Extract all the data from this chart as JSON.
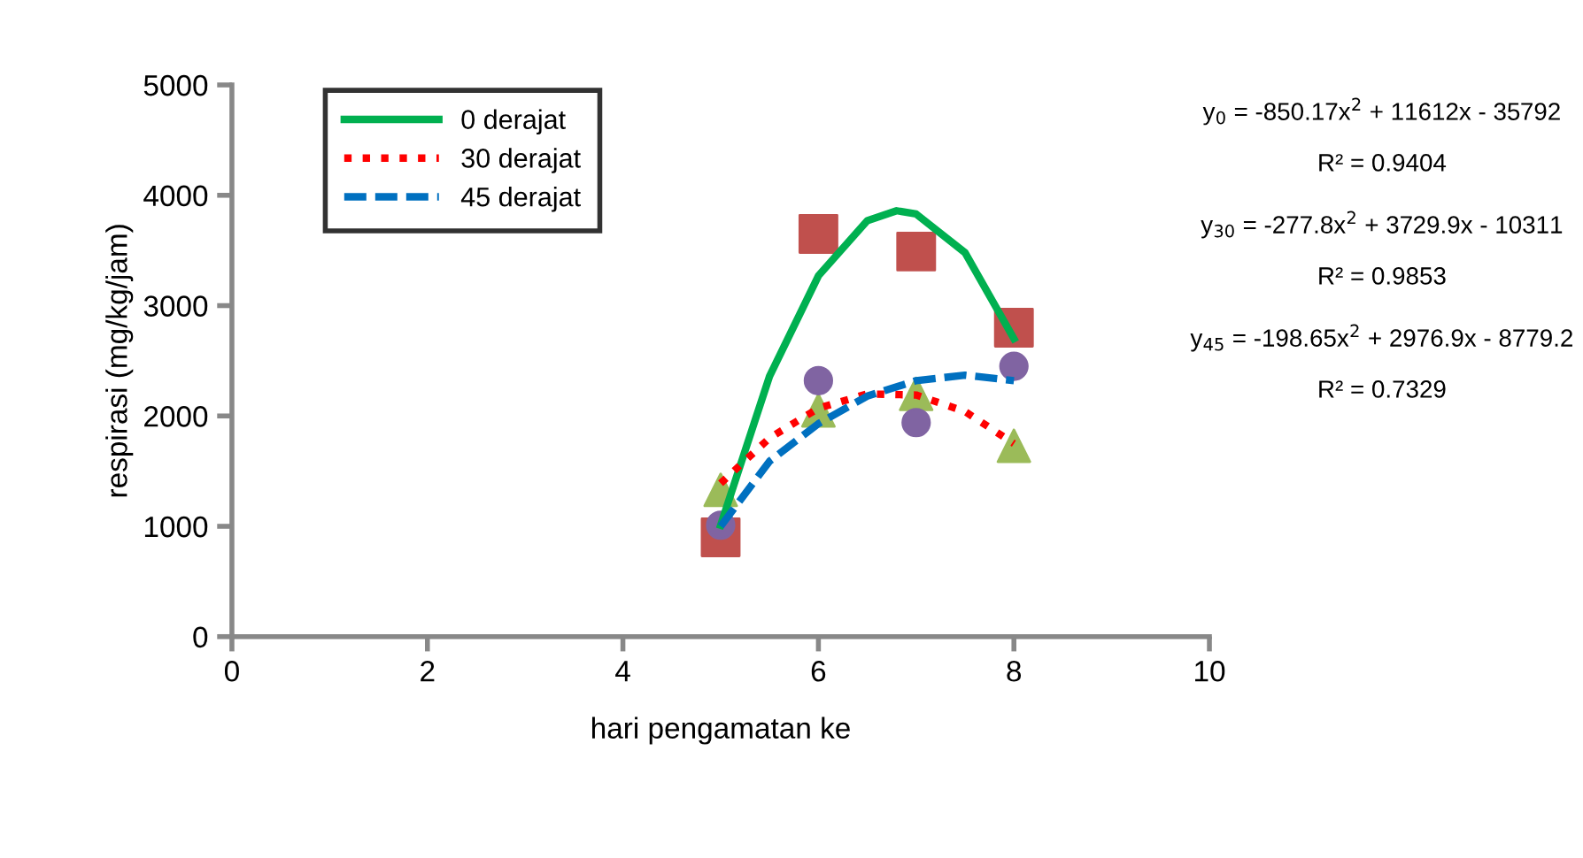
{
  "chart_data": {
    "type": "scatter",
    "xlabel": "hari pengamatan ke",
    "ylabel": "respirasi (mg/kg/jam)",
    "xlim": [
      0,
      10
    ],
    "xticks": [
      0,
      2,
      4,
      6,
      8,
      10
    ],
    "ylim": [
      0,
      5000
    ],
    "yticks": [
      0,
      1000,
      2000,
      3000,
      4000,
      5000
    ],
    "grid": false,
    "legend": "top left",
    "series": [
      {
        "marker": "square",
        "color": "#c0504d",
        "x": [
          5,
          6,
          7,
          8
        ],
        "values": [
          900,
          3650,
          3490,
          2800
        ]
      },
      {
        "marker": "triangle",
        "color": "#9bbb59",
        "x": [
          5,
          6,
          7,
          8
        ],
        "values": [
          1330,
          2050,
          2200,
          1730
        ]
      },
      {
        "marker": "circle",
        "color": "#8064a2",
        "x": [
          5,
          6,
          7,
          8
        ],
        "values": [
          1010,
          2320,
          1940,
          2450
        ]
      },
      {
        "type": "line",
        "name": "0 derajat",
        "color": "#00b050",
        "line_style": "solid",
        "x": [
          5,
          5.5,
          6,
          6.5,
          6.8,
          7,
          7.5,
          8
        ],
        "values": [
          1010,
          2360,
          3270,
          3770,
          3860,
          3830,
          3480,
          2700
        ]
      },
      {
        "type": "line",
        "name": "30 derajat",
        "color": "#ff0000",
        "line_style": "dotted",
        "x": [
          5,
          5.5,
          6,
          6.5,
          7,
          7.5,
          8
        ],
        "values": [
          1390,
          1800,
          2070,
          2200,
          2190,
          2040,
          1750
        ]
      },
      {
        "type": "line",
        "name": "45 derajat",
        "color": "#0070c0",
        "line_style": "dashed",
        "x": [
          5,
          5.5,
          6,
          6.5,
          7,
          7.5,
          8
        ],
        "values": [
          1000,
          1590,
          1930,
          2180,
          2320,
          2370,
          2320
        ]
      }
    ],
    "annotations": [
      "y$_{0}$ = -850.17x$^{2}$ + 11612x - 35792",
      "R² = 0.9404",
      "y$_{30}$ = -277.8x$^{2}$ + 3729.9x - 10311",
      "R² = 0.9853",
      "y$_{45}$ = -198.65x$^{2}$ + 2976.9x - 8779.2",
      "R² = 0.7329"
    ]
  }
}
